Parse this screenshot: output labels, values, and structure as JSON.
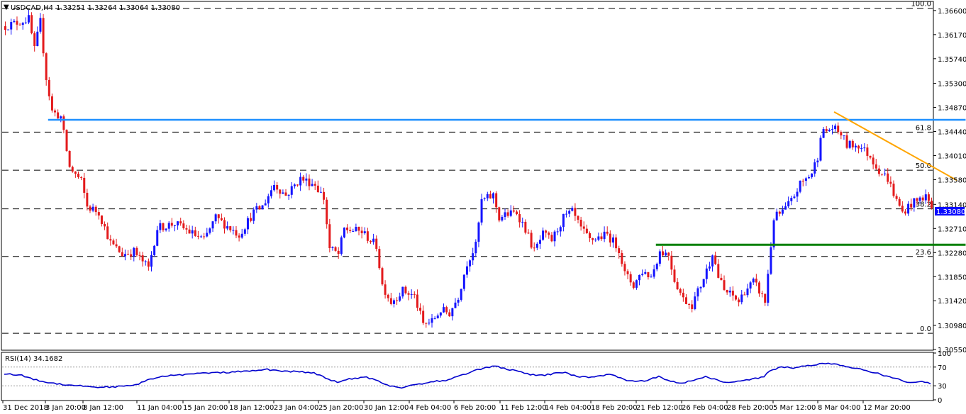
{
  "header": {
    "symbol": "USDCAD,H4",
    "ohlc": "1.33251 1.33264 1.33064 1.33080",
    "dropdown_glyph": "▼"
  },
  "rsi_header": "RSI(14) 34.1682",
  "colors": {
    "bull": "#1414ff",
    "bear": "#e31a1c",
    "resistance_line": "#1e90ff",
    "support_line": "#008000",
    "trend_line": "#ffa500",
    "rsi_line": "#0000cd",
    "price_tag_bg": "#0a0aff",
    "price_tag_text": "#ffffff"
  },
  "chart_data": [
    {
      "type": "candlestick",
      "title": "USDCAD,H4",
      "y_ticks": [
        "1.36600",
        "1.36170",
        "1.35740",
        "1.35300",
        "1.34870",
        "1.34440",
        "1.34010",
        "1.33580",
        "1.33140",
        "1.32710",
        "1.32280",
        "1.31850",
        "1.31420",
        "1.30980",
        "1.30550"
      ],
      "ylim": [
        1.3055,
        1.3675
      ],
      "x_ticks": [
        "31 Dec 2018",
        "3 Jan 20:00",
        "8 Jan 12:00",
        "11 Jan 04:00",
        "15 Jan 20:00",
        "18 Jan 12:00",
        "23 Jan 04:00",
        "25 Jan 20:00",
        "30 Jan 12:00",
        "4 Feb 04:00",
        "6 Feb 20:00",
        "11 Feb 12:00",
        "14 Feb 04:00",
        "18 Feb 20:00",
        "21 Feb 12:00",
        "26 Feb 04:00",
        "28 Feb 20:00",
        "5 Mar 12:00",
        "8 Mar 04:00",
        "12 Mar 20:00"
      ],
      "current_price": "1.33080",
      "fibonacci": [
        {
          "label": "100.0",
          "value": 1.3664
        },
        {
          "label": "61.8",
          "value": 1.3443
        },
        {
          "label": "50.0",
          "value": 1.3375
        },
        {
          "label": "38.2",
          "value": 1.3306
        },
        {
          "label": "23.6",
          "value": 1.3221
        },
        {
          "label": "0.0",
          "value": 1.3084
        }
      ],
      "lines": [
        {
          "name": "resistance",
          "from": {
            "bar": 15,
            "price": 1.3465
          },
          "to": {
            "bar": 329,
            "price": 1.3465
          }
        },
        {
          "name": "support",
          "from": {
            "bar": 223,
            "price": 1.3242
          },
          "to": {
            "bar": 329,
            "price": 1.3242
          }
        },
        {
          "name": "downtrend",
          "from": {
            "bar": 284,
            "price": 1.3479
          },
          "to": {
            "bar": 326,
            "price": 1.3357
          }
        }
      ],
      "path": [
        [
          0,
          1.3632
        ],
        [
          8,
          1.3645
        ],
        [
          10,
          1.359
        ],
        [
          12,
          1.364
        ],
        [
          14,
          1.354
        ],
        [
          16,
          1.348
        ],
        [
          19,
          1.347
        ],
        [
          22,
          1.338
        ],
        [
          26,
          1.3355
        ],
        [
          28,
          1.331
        ],
        [
          32,
          1.33
        ],
        [
          36,
          1.3245
        ],
        [
          40,
          1.3225
        ],
        [
          44,
          1.323
        ],
        [
          49,
          1.32
        ],
        [
          52,
          1.3272
        ],
        [
          58,
          1.328
        ],
        [
          63,
          1.3265
        ],
        [
          68,
          1.325
        ],
        [
          72,
          1.329
        ],
        [
          76,
          1.3275
        ],
        [
          80,
          1.326
        ],
        [
          85,
          1.33
        ],
        [
          88,
          1.331
        ],
        [
          92,
          1.335
        ],
        [
          96,
          1.333
        ],
        [
          101,
          1.336
        ],
        [
          106,
          1.335
        ],
        [
          109,
          1.3325
        ],
        [
          111,
          1.3235
        ],
        [
          114,
          1.3225
        ],
        [
          116,
          1.327
        ],
        [
          122,
          1.3265
        ],
        [
          127,
          1.324
        ],
        [
          129,
          1.317
        ],
        [
          132,
          1.314
        ],
        [
          136,
          1.316
        ],
        [
          140,
          1.315
        ],
        [
          143,
          1.31
        ],
        [
          146,
          1.3105
        ],
        [
          149,
          1.3125
        ],
        [
          152,
          1.312
        ],
        [
          155,
          1.315
        ],
        [
          158,
          1.321
        ],
        [
          161,
          1.324
        ],
        [
          163,
          1.332
        ],
        [
          167,
          1.333
        ],
        [
          169,
          1.329
        ],
        [
          171,
          1.3295
        ],
        [
          175,
          1.33
        ],
        [
          178,
          1.327
        ],
        [
          181,
          1.323
        ],
        [
          184,
          1.326
        ],
        [
          187,
          1.325
        ],
        [
          191,
          1.329
        ],
        [
          194,
          1.33
        ],
        [
          197,
          1.327
        ],
        [
          200,
          1.325
        ],
        [
          203,
          1.3255
        ],
        [
          206,
          1.326
        ],
        [
          210,
          1.3235
        ],
        [
          212,
          1.319
        ],
        [
          215,
          1.317
        ],
        [
          218,
          1.3195
        ],
        [
          221,
          1.3185
        ],
        [
          224,
          1.323
        ],
        [
          227,
          1.3225
        ],
        [
          229,
          1.318
        ],
        [
          232,
          1.3145
        ],
        [
          235,
          1.3135
        ],
        [
          238,
          1.317
        ],
        [
          241,
          1.321
        ],
        [
          242,
          1.323
        ],
        [
          244,
          1.3185
        ],
        [
          246,
          1.316
        ],
        [
          249,
          1.315
        ],
        [
          251,
          1.314
        ],
        [
          253,
          1.316
        ],
        [
          256,
          1.3175
        ],
        [
          258,
          1.316
        ],
        [
          260,
          1.314
        ],
        [
          262,
          1.324
        ],
        [
          263,
          1.329
        ],
        [
          266,
          1.33
        ],
        [
          269,
          1.332
        ],
        [
          272,
          1.335
        ],
        [
          276,
          1.337
        ],
        [
          278,
          1.34
        ],
        [
          279,
          1.344
        ],
        [
          283,
          1.345
        ],
        [
          286,
          1.344
        ],
        [
          288,
          1.342
        ],
        [
          292,
          1.342
        ],
        [
          296,
          1.34
        ],
        [
          299,
          1.3375
        ],
        [
          302,
          1.336
        ],
        [
          305,
          1.332
        ],
        [
          307,
          1.33
        ],
        [
          310,
          1.3315
        ],
        [
          312,
          1.332
        ],
        [
          315,
          1.333
        ],
        [
          317,
          1.3308
        ]
      ]
    },
    {
      "type": "line",
      "title": "RSI(14) 34.1682",
      "current_value": 34.1682,
      "y_ticks": [
        "100",
        "70",
        "30",
        "0"
      ],
      "ylim": [
        0,
        100
      ],
      "levels": [
        70,
        30
      ],
      "path": [
        [
          0,
          56
        ],
        [
          6,
          52
        ],
        [
          10,
          44
        ],
        [
          14,
          38
        ],
        [
          20,
          33
        ],
        [
          26,
          30
        ],
        [
          32,
          27
        ],
        [
          38,
          28
        ],
        [
          44,
          30
        ],
        [
          50,
          44
        ],
        [
          56,
          52
        ],
        [
          62,
          54
        ],
        [
          68,
          57
        ],
        [
          74,
          58
        ],
        [
          80,
          60
        ],
        [
          86,
          62
        ],
        [
          90,
          65
        ],
        [
          94,
          62
        ],
        [
          100,
          60
        ],
        [
          106,
          58
        ],
        [
          110,
          46
        ],
        [
          114,
          38
        ],
        [
          118,
          44
        ],
        [
          124,
          48
        ],
        [
          128,
          40
        ],
        [
          132,
          30
        ],
        [
          136,
          26
        ],
        [
          140,
          32
        ],
        [
          144,
          36
        ],
        [
          148,
          40
        ],
        [
          152,
          42
        ],
        [
          156,
          52
        ],
        [
          160,
          60
        ],
        [
          164,
          68
        ],
        [
          168,
          72
        ],
        [
          172,
          66
        ],
        [
          176,
          60
        ],
        [
          180,
          54
        ],
        [
          184,
          52
        ],
        [
          188,
          56
        ],
        [
          192,
          58
        ],
        [
          196,
          50
        ],
        [
          200,
          48
        ],
        [
          204,
          52
        ],
        [
          208,
          54
        ],
        [
          212,
          44
        ],
        [
          216,
          38
        ],
        [
          220,
          42
        ],
        [
          224,
          50
        ],
        [
          228,
          40
        ],
        [
          232,
          36
        ],
        [
          236,
          42
        ],
        [
          240,
          50
        ],
        [
          244,
          42
        ],
        [
          248,
          36
        ],
        [
          252,
          40
        ],
        [
          256,
          44
        ],
        [
          260,
          50
        ],
        [
          262,
          62
        ],
        [
          266,
          70
        ],
        [
          270,
          68
        ],
        [
          274,
          72
        ],
        [
          278,
          76
        ],
        [
          282,
          78
        ],
        [
          286,
          74
        ],
        [
          290,
          68
        ],
        [
          294,
          64
        ],
        [
          298,
          58
        ],
        [
          302,
          50
        ],
        [
          306,
          44
        ],
        [
          310,
          36
        ],
        [
          314,
          40
        ],
        [
          317,
          34
        ]
      ]
    }
  ]
}
